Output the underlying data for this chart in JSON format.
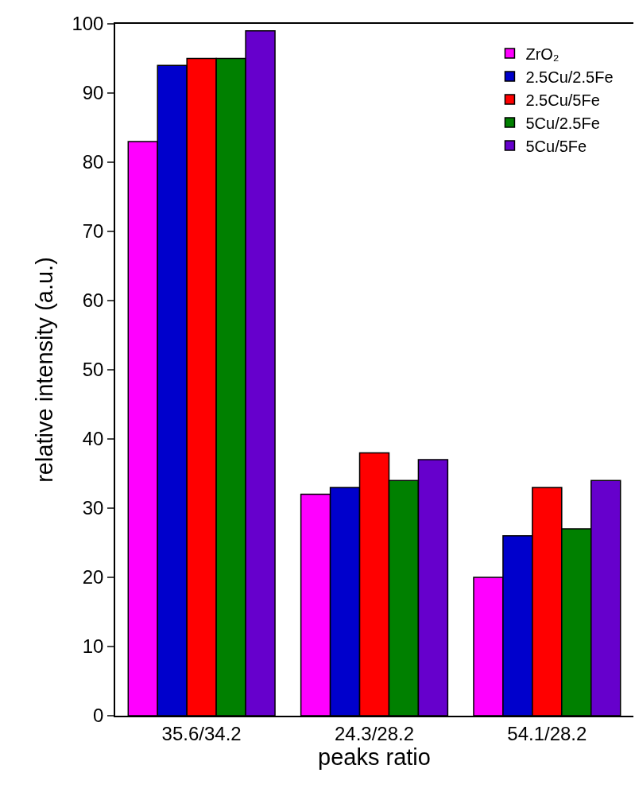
{
  "chart_data": {
    "type": "bar",
    "xlabel": "peaks ratio",
    "ylabel": "relative intensity (a.u.)",
    "categories": [
      "35.6/34.2",
      "24.3/28.2",
      "54.1/28.2"
    ],
    "series": [
      {
        "name": "ZrO₂",
        "color": "#ff00ff",
        "values": [
          83,
          32,
          20
        ]
      },
      {
        "name": "2.5Cu/2.5Fe",
        "color": "#0000cc",
        "values": [
          94,
          33,
          26
        ]
      },
      {
        "name": "2.5Cu/5Fe",
        "color": "#ff0000",
        "values": [
          95,
          38,
          33
        ]
      },
      {
        "name": "5Cu/2.5Fe",
        "color": "#008000",
        "values": [
          95,
          34,
          27
        ]
      },
      {
        "name": "5Cu/5Fe",
        "color": "#6600cc",
        "values": [
          99,
          37,
          34
        ]
      }
    ],
    "ylim": [
      0,
      100
    ],
    "yticks": [
      0,
      10,
      20,
      30,
      40,
      50,
      60,
      70,
      80,
      90,
      100
    ],
    "legend": "top right"
  }
}
